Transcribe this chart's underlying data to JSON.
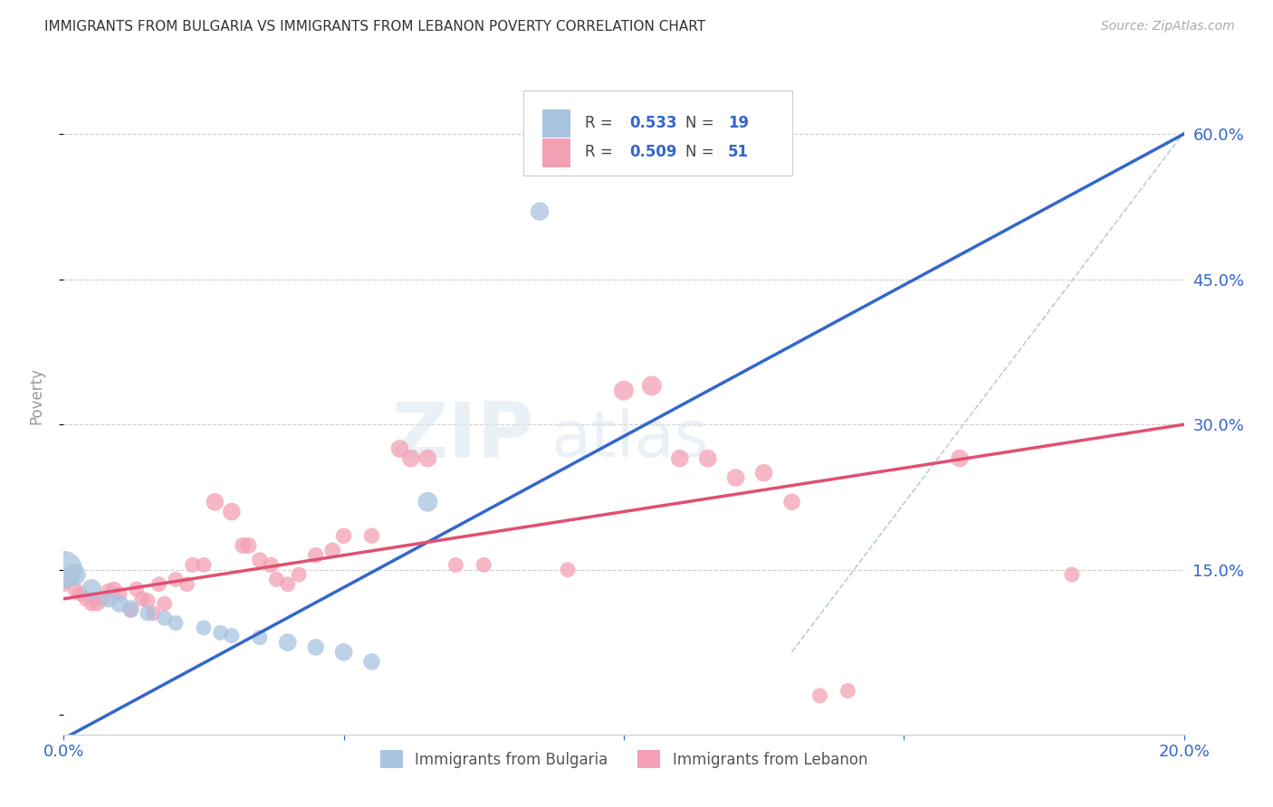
{
  "title": "IMMIGRANTS FROM BULGARIA VS IMMIGRANTS FROM LEBANON POVERTY CORRELATION CHART",
  "source": "Source: ZipAtlas.com",
  "ylabel": "Poverty",
  "xlim": [
    0.0,
    0.2
  ],
  "ylim": [
    -0.02,
    0.68
  ],
  "bulgaria_color": "#a8c4e0",
  "lebanon_color": "#f4a0b4",
  "trendline_bulgaria_color": "#3366cc",
  "trendline_lebanon_color": "#e05070",
  "dashed_line_color": "#b0c8dc",
  "watermark_zip": "ZIP",
  "watermark_atlas": "atlas",
  "bg_color": "#ffffff",
  "bulgaria_trendline": [
    [
      -0.005,
      -0.04
    ],
    [
      0.2,
      0.6
    ]
  ],
  "lebanon_trendline": [
    [
      0.0,
      0.12
    ],
    [
      0.2,
      0.3
    ]
  ],
  "bulgaria_points": [
    [
      0.0,
      0.15
    ],
    [
      0.002,
      0.145
    ],
    [
      0.005,
      0.13
    ],
    [
      0.008,
      0.12
    ],
    [
      0.01,
      0.115
    ],
    [
      0.012,
      0.11
    ],
    [
      0.015,
      0.105
    ],
    [
      0.018,
      0.1
    ],
    [
      0.02,
      0.095
    ],
    [
      0.025,
      0.09
    ],
    [
      0.028,
      0.085
    ],
    [
      0.03,
      0.082
    ],
    [
      0.035,
      0.08
    ],
    [
      0.04,
      0.075
    ],
    [
      0.045,
      0.07
    ],
    [
      0.05,
      0.065
    ],
    [
      0.055,
      0.055
    ],
    [
      0.065,
      0.22
    ],
    [
      0.085,
      0.52
    ]
  ],
  "bulgaria_sizes": [
    900,
    300,
    250,
    200,
    200,
    180,
    160,
    150,
    150,
    150,
    150,
    150,
    150,
    200,
    180,
    200,
    180,
    250,
    220
  ],
  "lebanon_points": [
    [
      0.0,
      0.135
    ],
    [
      0.002,
      0.13
    ],
    [
      0.003,
      0.125
    ],
    [
      0.004,
      0.12
    ],
    [
      0.005,
      0.115
    ],
    [
      0.006,
      0.115
    ],
    [
      0.007,
      0.12
    ],
    [
      0.008,
      0.128
    ],
    [
      0.009,
      0.13
    ],
    [
      0.01,
      0.125
    ],
    [
      0.012,
      0.108
    ],
    [
      0.013,
      0.13
    ],
    [
      0.014,
      0.12
    ],
    [
      0.015,
      0.118
    ],
    [
      0.016,
      0.105
    ],
    [
      0.017,
      0.135
    ],
    [
      0.018,
      0.115
    ],
    [
      0.02,
      0.14
    ],
    [
      0.022,
      0.135
    ],
    [
      0.023,
      0.155
    ],
    [
      0.025,
      0.155
    ],
    [
      0.027,
      0.22
    ],
    [
      0.03,
      0.21
    ],
    [
      0.032,
      0.175
    ],
    [
      0.033,
      0.175
    ],
    [
      0.035,
      0.16
    ],
    [
      0.037,
      0.155
    ],
    [
      0.038,
      0.14
    ],
    [
      0.04,
      0.135
    ],
    [
      0.042,
      0.145
    ],
    [
      0.045,
      0.165
    ],
    [
      0.048,
      0.17
    ],
    [
      0.05,
      0.185
    ],
    [
      0.055,
      0.185
    ],
    [
      0.06,
      0.275
    ],
    [
      0.062,
      0.265
    ],
    [
      0.065,
      0.265
    ],
    [
      0.07,
      0.155
    ],
    [
      0.075,
      0.155
    ],
    [
      0.09,
      0.15
    ],
    [
      0.1,
      0.335
    ],
    [
      0.105,
      0.34
    ],
    [
      0.11,
      0.265
    ],
    [
      0.115,
      0.265
    ],
    [
      0.12,
      0.245
    ],
    [
      0.125,
      0.25
    ],
    [
      0.13,
      0.22
    ],
    [
      0.135,
      0.02
    ],
    [
      0.14,
      0.025
    ],
    [
      0.16,
      0.265
    ],
    [
      0.18,
      0.145
    ]
  ],
  "lebanon_sizes": [
    150,
    150,
    150,
    150,
    150,
    150,
    150,
    150,
    150,
    150,
    150,
    150,
    150,
    150,
    150,
    150,
    150,
    150,
    150,
    150,
    150,
    200,
    200,
    170,
    170,
    160,
    160,
    150,
    150,
    150,
    160,
    160,
    160,
    160,
    200,
    200,
    200,
    150,
    150,
    150,
    250,
    250,
    200,
    200,
    200,
    200,
    180,
    150,
    150,
    200,
    150
  ]
}
